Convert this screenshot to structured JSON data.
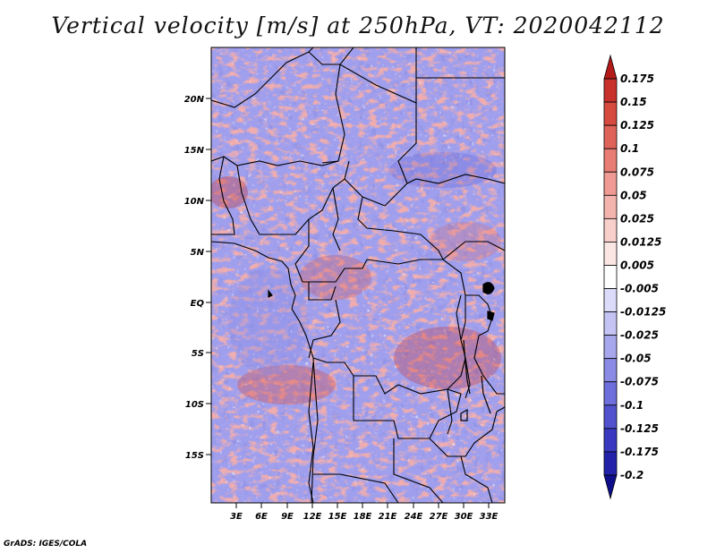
{
  "title": "Vertical velocity [m/s] at 250hPa, VT: 2020042112",
  "footer": "GrADS: IGES/COLA",
  "map": {
    "lat_labels": [
      "20N",
      "15N",
      "10N",
      "5N",
      "EQ",
      "5S",
      "10S",
      "15S"
    ],
    "lon_labels": [
      "3E",
      "6E",
      "9E",
      "12E",
      "15E",
      "18E",
      "21E",
      "24E",
      "27E",
      "30E",
      "33E"
    ]
  },
  "colorbar": {
    "labels": [
      "0.175",
      "0.15",
      "0.125",
      "0.1",
      "0.075",
      "0.05",
      "0.025",
      "0.0125",
      "0.005",
      "-0.005",
      "-0.0125",
      "-0.025",
      "-0.05",
      "-0.075",
      "-0.1",
      "-0.125",
      "-0.175",
      "-0.2"
    ],
    "colors": [
      "#b51a1a",
      "#c8302c",
      "#d64a40",
      "#e0635a",
      "#e87d75",
      "#ef9a92",
      "#f4b4ae",
      "#f8cfca",
      "#fbe6e3",
      "#ffffff",
      "#dcdcfa",
      "#c4c4f4",
      "#a7a7ee",
      "#8b8be6",
      "#6e6edc",
      "#5252cf",
      "#3838c0",
      "#2121a9",
      "#0e0e8a"
    ]
  }
}
